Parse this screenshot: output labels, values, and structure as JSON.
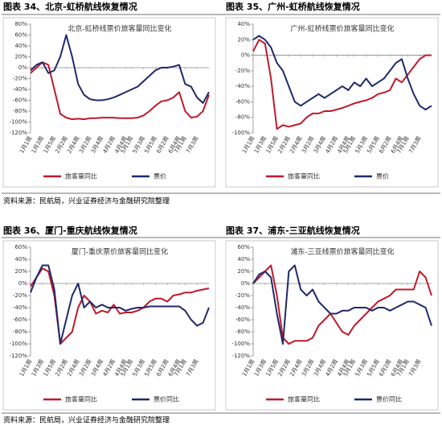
{
  "chart_data": [
    {
      "type": "line",
      "caption": "图表 34、北京-虹桥航线恢复情况",
      "title": "北京-虹桥线票价旅客量同比变化",
      "legend": "bottom",
      "categories": [
        "1月1周",
        null,
        "1月3周",
        null,
        "1月5周",
        null,
        "2月2周",
        null,
        "2月4周",
        null,
        "3月2周",
        null,
        "3月4周",
        null,
        "4月2周",
        null,
        "4月4周",
        "5月1周",
        null,
        "5月3周",
        null,
        "5月5周",
        null,
        "6月2周",
        null,
        "6月4周",
        "7月1周",
        null,
        "7月3周",
        null,
        null
      ],
      "ylim": [
        -120,
        80
      ],
      "yticks": [
        {
          "value": -120,
          "label": "-120%"
        },
        {
          "value": -100,
          "label": "-100%"
        },
        {
          "value": -80,
          "label": "-80%"
        },
        {
          "value": -60,
          "label": "-60%"
        },
        {
          "value": -40,
          "label": "-40%"
        },
        {
          "value": -20,
          "label": "-20%"
        },
        {
          "value": 0,
          "label": "0%"
        },
        {
          "value": 20,
          "label": "20%"
        },
        {
          "value": 40,
          "label": "40%"
        },
        {
          "value": 60,
          "label": "60%"
        },
        {
          "value": 80,
          "label": "80%"
        }
      ],
      "series": [
        {
          "name": "旅客量同比",
          "color": "#c0192b",
          "values": [
            -10,
            0,
            10,
            5,
            -40,
            -85,
            -92,
            -95,
            -94,
            -95,
            -93,
            -93,
            -92,
            -92,
            -92,
            -93,
            -93,
            -93,
            -92,
            -88,
            -80,
            -70,
            -62,
            -60,
            -55,
            -45,
            -80,
            -92,
            -90,
            -80,
            -50
          ]
        },
        {
          "name": "票价",
          "color": "#1f2a6b",
          "values": [
            -5,
            5,
            10,
            -10,
            -5,
            20,
            60,
            20,
            -30,
            -50,
            -58,
            -60,
            -60,
            -58,
            -55,
            -50,
            -45,
            -40,
            -35,
            -25,
            -15,
            -5,
            0,
            0,
            2,
            5,
            -30,
            -35,
            -55,
            -65,
            -45
          ]
        }
      ]
    },
    {
      "type": "line",
      "caption": "图表 35、广州-虹桥航线恢复情况",
      "title": "广州-虹桥线票价旅客量同比变化",
      "legend": "bottom",
      "categories": [
        "1月1周",
        null,
        "1月3周",
        null,
        "1月5周",
        null,
        "2月2周",
        null,
        "2月4周",
        null,
        "3月2周",
        null,
        "3月4周",
        null,
        "4月2周",
        null,
        "4月4周",
        "5月1周",
        null,
        "5月3周",
        null,
        "5月5周",
        null,
        "6月2周",
        null,
        "6月4周",
        "7月1周",
        null,
        "7月3周",
        null,
        null
      ],
      "ylim": [
        -100,
        40
      ],
      "yticks": [
        {
          "value": -100,
          "label": "-100%"
        },
        {
          "value": -80,
          "label": "-80%"
        },
        {
          "value": -60,
          "label": "-60%"
        },
        {
          "value": -40,
          "label": "-40%"
        },
        {
          "value": -20,
          "label": "-20%"
        },
        {
          "value": 0,
          "label": "0%"
        },
        {
          "value": 20,
          "label": "20%"
        },
        {
          "value": 40,
          "label": "40%"
        }
      ],
      "series": [
        {
          "name": "旅客量同比",
          "color": "#c0192b",
          "values": [
            5,
            20,
            15,
            -30,
            -95,
            -90,
            -92,
            -90,
            -88,
            -80,
            -75,
            -75,
            -72,
            -72,
            -70,
            -68,
            -65,
            -62,
            -60,
            -58,
            -55,
            -50,
            -48,
            -45,
            -30,
            -35,
            -25,
            -15,
            -5,
            0,
            0
          ]
        },
        {
          "name": "票价",
          "color": "#1f2a6b",
          "values": [
            20,
            25,
            20,
            10,
            -10,
            -20,
            -40,
            -60,
            -65,
            -60,
            -55,
            -50,
            -55,
            -50,
            -45,
            -40,
            -45,
            -35,
            -40,
            -30,
            -40,
            -35,
            -30,
            -20,
            -10,
            -5,
            -30,
            -50,
            -65,
            -70,
            -65
          ]
        }
      ]
    },
    {
      "type": "line",
      "caption": "图表 36、厦门-重庆航线恢复情况",
      "title": "厦门-重庆票价旅客量同比变化",
      "legend": "bottom",
      "categories": [
        "1月1周",
        null,
        "1月3周",
        null,
        "1月5周",
        null,
        "2月2周",
        null,
        "2月4周",
        null,
        "3月2周",
        null,
        "3月4周",
        null,
        "4月2周",
        null,
        "4月4周",
        "5月1周",
        null,
        "5月3周",
        null,
        "5月5周",
        null,
        "6月2周",
        null,
        "6月4周",
        "7月1周",
        null,
        "7月3周",
        null,
        null
      ],
      "ylim": [
        -120,
        60
      ],
      "yticks": [
        {
          "value": -120,
          "label": "-120%"
        },
        {
          "value": -100,
          "label": "-100%"
        },
        {
          "value": -80,
          "label": "-80%"
        },
        {
          "value": -60,
          "label": "-60%"
        },
        {
          "value": -40,
          "label": "-40%"
        },
        {
          "value": -20,
          "label": "-20%"
        },
        {
          "value": 0,
          "label": "0%"
        },
        {
          "value": 20,
          "label": "20%"
        },
        {
          "value": 40,
          "label": "40%"
        },
        {
          "value": 60,
          "label": "60%"
        }
      ],
      "series": [
        {
          "name": "旅客量同比",
          "color": "#c0192b",
          "values": [
            -5,
            10,
            25,
            20,
            -20,
            -100,
            -90,
            -80,
            -40,
            -20,
            -30,
            -50,
            -45,
            -48,
            -35,
            -50,
            -48,
            -48,
            -45,
            -40,
            -30,
            -25,
            -25,
            -30,
            -20,
            -18,
            -15,
            -15,
            -12,
            -10,
            -8
          ]
        },
        {
          "name": "票价同比",
          "color": "#1f2a6b",
          "values": [
            -15,
            10,
            30,
            30,
            -10,
            -100,
            -60,
            -20,
            0,
            -40,
            -30,
            -40,
            -35,
            -40,
            -40,
            -40,
            -45,
            -42,
            -40,
            -40,
            -38,
            -38,
            -38,
            -38,
            -38,
            -38,
            -45,
            -60,
            -70,
            -65,
            -40
          ]
        }
      ]
    },
    {
      "type": "line",
      "caption": "图表 37、浦东-三亚航线恢复情况",
      "title": "浦东-三亚线票价旅客量同比变化",
      "legend": "bottom",
      "categories": [
        "1月1周",
        null,
        "1月3周",
        null,
        "1月5周",
        null,
        "2月2周",
        null,
        "2月4周",
        null,
        "3月2周",
        null,
        "3月4周",
        null,
        "4月2周",
        null,
        "4月4周",
        "5月1周",
        null,
        "5月3周",
        null,
        "5月5周",
        null,
        "6月2周",
        null,
        "6月4周",
        "7月1周",
        null,
        "7月3周",
        null,
        null
      ],
      "ylim": [
        -120,
        60
      ],
      "yticks": [
        {
          "value": -120,
          "label": "-120%"
        },
        {
          "value": -100,
          "label": "-100%"
        },
        {
          "value": -80,
          "label": "-80%"
        },
        {
          "value": -60,
          "label": "-60%"
        },
        {
          "value": -40,
          "label": "-40%"
        },
        {
          "value": -20,
          "label": "-20%"
        },
        {
          "value": 0,
          "label": "0%"
        },
        {
          "value": 20,
          "label": "20%"
        },
        {
          "value": 40,
          "label": "40%"
        },
        {
          "value": 60,
          "label": "60%"
        }
      ],
      "series": [
        {
          "name": "旅客量同比",
          "color": "#c0192b",
          "values": [
            0,
            10,
            20,
            30,
            -20,
            -90,
            -100,
            -95,
            -95,
            -95,
            -90,
            -70,
            -60,
            -50,
            -65,
            -80,
            -85,
            -70,
            -60,
            -50,
            -40,
            -30,
            -25,
            -20,
            -10,
            -10,
            -10,
            -10,
            20,
            10,
            -20
          ]
        },
        {
          "name": "票价同比",
          "color": "#1f2a6b",
          "values": [
            0,
            15,
            20,
            10,
            -50,
            -100,
            20,
            30,
            -10,
            -20,
            -10,
            -30,
            -40,
            -50,
            -50,
            -45,
            -45,
            -40,
            -40,
            -40,
            -45,
            -40,
            -40,
            -45,
            -40,
            -35,
            -30,
            -30,
            -35,
            -40,
            -70
          ]
        }
      ]
    }
  ],
  "sources": [
    "资料来源：民航局，兴业证券经济与金融研究院整理",
    "资料来源：民航局，兴业证券经济与金融研究院整理"
  ]
}
